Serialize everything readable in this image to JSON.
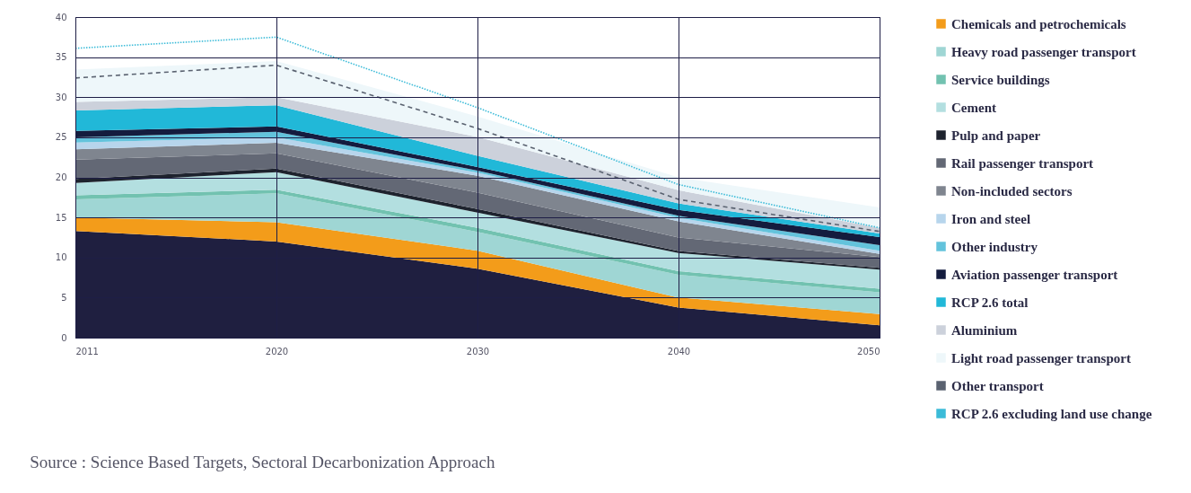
{
  "chart_data": {
    "type": "area",
    "stacked": true,
    "categories": [
      "2011",
      "2020",
      "2030",
      "2040",
      "2050"
    ],
    "ylim": [
      0,
      40
    ],
    "yticks": [
      0,
      5,
      10,
      15,
      20,
      25,
      30,
      35,
      40
    ],
    "grid": true,
    "legend": "right",
    "annotations": [
      "Source : Science Based Targets, Sectoral Decarbonization Approach"
    ],
    "series": [
      {
        "color": "#1f1f40",
        "values": [
          13.3,
          12.0,
          8.6,
          3.75,
          1.55
        ]
      },
      {
        "name": "Chemicals and petrochemicals",
        "color": "#f39c1a",
        "values": [
          1.7,
          2.4,
          2.25,
          1.25,
          1.4
        ]
      },
      {
        "name": "Heavy road passenger transport",
        "color": "#9fd6d4",
        "values": [
          2.25,
          3.6,
          2.35,
          2.85,
          2.7
        ]
      },
      {
        "name": "Service buildings",
        "color": "#72c2b0",
        "values": [
          0.5,
          0.45,
          0.5,
          0.45,
          0.45
        ]
      },
      {
        "name": "Cement",
        "color": "#b3dfe0",
        "values": [
          1.55,
          2.2,
          1.9,
          2.25,
          2.4
        ]
      },
      {
        "name": "Pulp and paper",
        "color": "#1e232e",
        "values": [
          0.5,
          0.45,
          0.45,
          0.25,
          0.2
        ]
      },
      {
        "name": "Rail passenger transport",
        "color": "#636875",
        "values": [
          2.4,
          1.9,
          2.05,
          1.7,
          1.35
        ]
      },
      {
        "name": "Non-included sectors",
        "color": "#7f858f",
        "values": [
          1.3,
          1.3,
          2.1,
          2.0,
          0.4
        ]
      },
      {
        "name": "Iron and steel",
        "color": "#b7d5ec",
        "values": [
          0.85,
          0.7,
          0.4,
          0.45,
          0.4
        ]
      },
      {
        "name": "Other industry",
        "color": "#63c3dc",
        "values": [
          0.65,
          0.7,
          0.25,
          0.25,
          0.7
        ]
      },
      {
        "name": "Aviation passenger transport",
        "color": "#141c3e",
        "values": [
          0.8,
          0.65,
          0.45,
          0.75,
          1.0
        ]
      },
      {
        "name": "RCP 2.6 total",
        "color": "#21b8d8",
        "values": [
          2.55,
          2.65,
          1.4,
          0.8,
          0.45
        ]
      },
      {
        "name": "Aluminium",
        "color": "#ccd1db",
        "values": [
          1.05,
          1.0,
          2.35,
          1.65,
          0.7
        ]
      },
      {
        "name": "Light road passenger transport",
        "color": "#eef7fa",
        "values": [
          4.05,
          4.5,
          2.55,
          1.6,
          2.55
        ]
      },
      {
        "name": "Other transport",
        "type": "line",
        "line_style": "dashed",
        "color": "#5a6270",
        "values": [
          32.4,
          34.0,
          26.1,
          17.25,
          13.25
        ]
      },
      {
        "name": "RCP 2.6 excluding land use change",
        "type": "line",
        "line_style": "dotted",
        "color": "#3bbbd8",
        "values": [
          36.1,
          37.5,
          28.7,
          19.1,
          13.7
        ]
      }
    ]
  }
}
